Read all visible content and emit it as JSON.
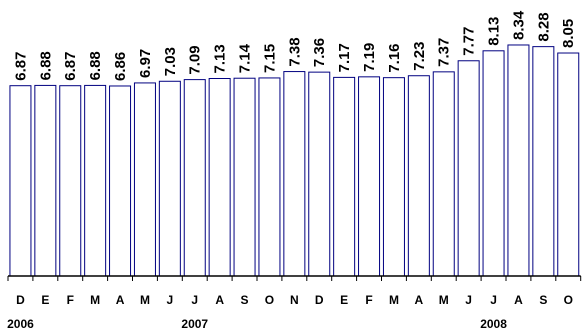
{
  "chart_data": {
    "type": "bar",
    "categories": [
      "D",
      "E",
      "F",
      "M",
      "A",
      "M",
      "J",
      "J",
      "A",
      "S",
      "O",
      "N",
      "D",
      "E",
      "F",
      "M",
      "A",
      "M",
      "J",
      "J",
      "A",
      "S",
      "O"
    ],
    "values": [
      6.87,
      6.88,
      6.87,
      6.88,
      6.86,
      6.97,
      7.03,
      7.09,
      7.13,
      7.14,
      7.15,
      7.38,
      7.36,
      7.17,
      7.19,
      7.16,
      7.23,
      7.37,
      7.77,
      8.13,
      8.34,
      8.28,
      8.05
    ],
    "value_labels": [
      "6.87",
      "6.88",
      "6.87",
      "6.88",
      "6.86",
      "6.97",
      "7.03",
      "7.09",
      "7.13",
      "7.14",
      "7.15",
      "7.38",
      "7.36",
      "7.17",
      "7.19",
      "7.16",
      "7.23",
      "7.37",
      "7.77",
      "8.13",
      "8.34",
      "8.28",
      "8.05"
    ],
    "year_labels": [
      {
        "text": "2006",
        "category_index": 0
      },
      {
        "text": "2007",
        "category_index": 7
      },
      {
        "text": "2008",
        "category_index": 19
      }
    ],
    "ylim": [
      0,
      8.62
    ],
    "grid": false,
    "legend": "none",
    "colors": {
      "bar_fill": "#ffffff",
      "bar_stroke": "#000080",
      "axis": "#000000",
      "text": "#000000"
    }
  }
}
